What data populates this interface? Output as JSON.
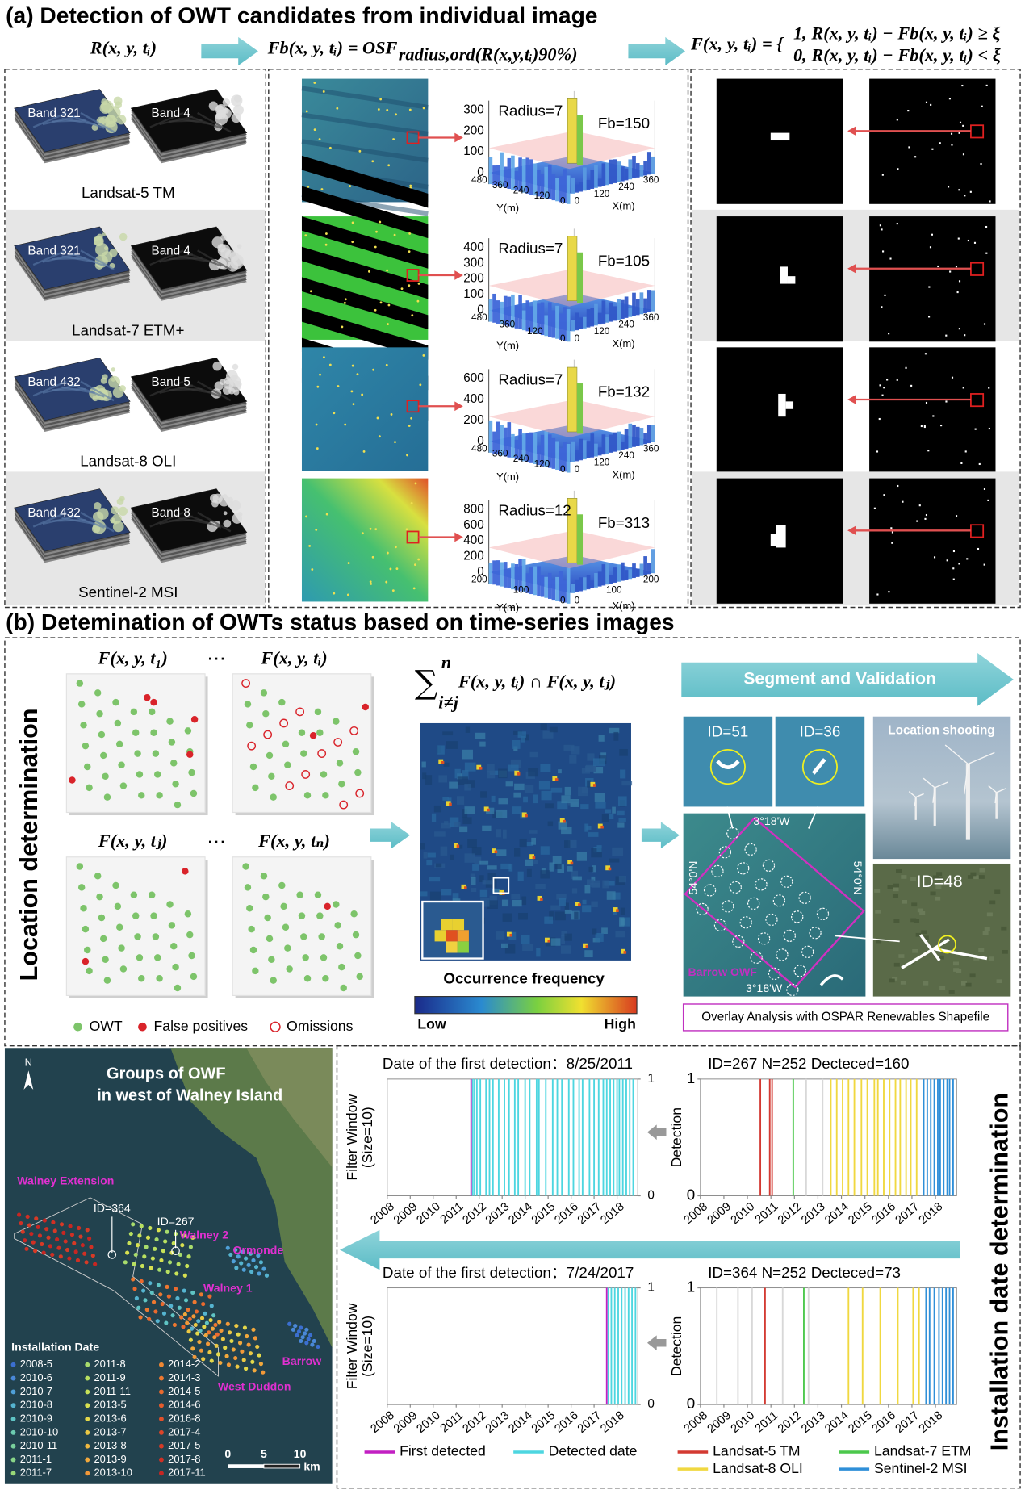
{
  "panel_a": {
    "title": "(a) Detection of  OWT candidates from individual image",
    "eq_input": "R(x, y, tᵢ)",
    "eq_filter": "Fb(x, y, tᵢ) = OSF",
    "eq_filter_sub": "radius,ord(R(x,y,tᵢ)90%)",
    "eq_binary": "F(x, y, tᵢ) = {",
    "eq_case1": "1, R(x, y, tᵢ) − Fb(x, y, tᵢ) ≥ ξ",
    "eq_case0": "0, R(x, y, tᵢ) − Fb(x, y, tᵢ) < ξ",
    "y_axis": "Y(m)",
    "x_axis": "X(m)",
    "rows": [
      {
        "sensor": "Landsat-5 TM",
        "bands": [
          "Band 321",
          "Band 4"
        ],
        "radius": "Radius=7",
        "fb": "Fb=150",
        "zticks": [
          300,
          200,
          100,
          0
        ],
        "yticks": [
          480,
          360,
          240,
          120,
          0
        ],
        "xticks": [
          0,
          120,
          240,
          360
        ]
      },
      {
        "sensor": "Landsat-7 ETM+",
        "bands": [
          "Band 321",
          "Band 4"
        ],
        "radius": "Radius=7",
        "fb": "Fb=105",
        "zticks": [
          400,
          300,
          200,
          100,
          0
        ],
        "yticks": [
          480,
          360,
          120,
          0
        ],
        "xticks": [
          0,
          120,
          240,
          360
        ]
      },
      {
        "sensor": "Landsat-8 OLI",
        "bands": [
          "Band 432",
          "Band 5"
        ],
        "radius": "Radius=7",
        "fb": "Fb=132",
        "zticks": [
          600,
          400,
          200,
          0
        ],
        "yticks": [
          480,
          360,
          240,
          120,
          0
        ],
        "xticks": [
          0,
          120,
          240,
          360
        ]
      },
      {
        "sensor": "Sentinel-2 MSI",
        "bands": [
          "Band 432",
          "Band 8"
        ],
        "radius": "Radius=12",
        "fb": "Fb=313",
        "zticks": [
          800,
          600,
          400,
          200,
          0
        ],
        "yticks": [
          200,
          100,
          0
        ],
        "xticks": [
          0,
          100,
          200
        ]
      }
    ]
  },
  "panel_b": {
    "title": "(b) Detemination of OWTs status based on time-series images",
    "side_label": "Location determination",
    "frames": [
      "F(x, y, t₁)",
      "F(x, y, tᵢ)",
      "F(x, y, tⱼ)",
      "F(x, y, tₙ)"
    ],
    "ellipses": [
      "⋯",
      "⋯"
    ],
    "legend": [
      {
        "name": "OWT",
        "color": "#7dc46a"
      },
      {
        "name": "False positives",
        "color": "#d9232a"
      },
      {
        "name": "Omissions",
        "color": "#d9232a"
      }
    ],
    "sum_symbol": "∑",
    "sum_upper": "n",
    "sum_lower": "i≠j",
    "sum_expr": "F(x, y, tᵢ) ∩ F(x, y, tⱼ)",
    "frequency_label": "Occurrence frequency",
    "low": "Low",
    "high": "High",
    "arrow_label": "Segment and Validation",
    "ids": [
      "ID=51",
      "ID=36"
    ],
    "photo_label": "Location shooting",
    "photo_id": "ID=48",
    "lon": [
      "3°18'W",
      "3°18'W"
    ],
    "lat": [
      "54°0'N",
      "54°0'N"
    ],
    "site": "Barrow OWF",
    "overlay": "Overlay Analysis with OSPAR Renewables Shapefile"
  },
  "panel_c": {
    "side_label": "Installation date  determination",
    "map": {
      "north": "N",
      "title": [
        "Groups of OWF",
        "in west of Walney Island"
      ],
      "farms": [
        "Walney Extension",
        "Walney 2",
        "Ormonde",
        "Walney 1",
        "Barrow",
        "West Duddon"
      ],
      "ids": [
        "ID=364",
        "ID=267"
      ],
      "legend_title": "Installation Date",
      "dates": [
        {
          "name": "2008-5",
          "color": "#3b6fd0"
        },
        {
          "name": "2010-6",
          "color": "#4a88d8"
        },
        {
          "name": "2010-7",
          "color": "#4fa0d8"
        },
        {
          "name": "2010-8",
          "color": "#55b4d0"
        },
        {
          "name": "2010-9",
          "color": "#5fc4c4"
        },
        {
          "name": "2010-10",
          "color": "#6ccbb0"
        },
        {
          "name": "2010-11",
          "color": "#79d09c"
        },
        {
          "name": "2011-1",
          "color": "#88d488"
        },
        {
          "name": "2011-7",
          "color": "#98d878"
        },
        {
          "name": "2011-8",
          "color": "#a8dc6c"
        },
        {
          "name": "2011-9",
          "color": "#b8e060"
        },
        {
          "name": "2011-11",
          "color": "#c8e258"
        },
        {
          "name": "2013-5",
          "color": "#d8e050"
        },
        {
          "name": "2013-6",
          "color": "#e4d84a"
        },
        {
          "name": "2013-7",
          "color": "#ecc844"
        },
        {
          "name": "2013-8",
          "color": "#f0b840"
        },
        {
          "name": "2013-9",
          "color": "#f2a83c"
        },
        {
          "name": "2013-10",
          "color": "#f29838"
        },
        {
          "name": "2014-2",
          "color": "#f08834"
        },
        {
          "name": "2014-3",
          "color": "#ee7830"
        },
        {
          "name": "2014-5",
          "color": "#ea6a2e"
        },
        {
          "name": "2014-6",
          "color": "#e65c2c"
        },
        {
          "name": "2016-8",
          "color": "#e2502a"
        },
        {
          "name": "2017-4",
          "color": "#dc4428"
        },
        {
          "name": "2017-5",
          "color": "#d63a26"
        },
        {
          "name": "2017-8",
          "color": "#d03024"
        },
        {
          "name": "2017-11",
          "color": "#c82622"
        }
      ],
      "scale": [
        0,
        5,
        10
      ],
      "scale_unit": "km"
    },
    "charts": [
      {
        "type": "event",
        "title": "Date of the first detection：8/25/2011",
        "ylabel": [
          "Filter Window",
          "(Size=10)"
        ],
        "ylim": [
          0,
          1
        ],
        "yticks": [
          0,
          1
        ],
        "xlim": [
          2008,
          2018.9
        ],
        "xticks": [
          2008,
          2009,
          2010,
          2011,
          2012,
          2013,
          2014,
          2015,
          2016,
          2017,
          2018
        ],
        "groups": [
          {
            "color": "#c21fc2",
            "x": [
              2011.65
            ]
          },
          {
            "color": "#4dd6e0",
            "x": [
              2011.72,
              2011.8,
              2011.9,
              2012.05,
              2012.3,
              2012.45,
              2012.6,
              2012.85,
              2013.1,
              2013.3,
              2013.55,
              2013.7,
              2014.0,
              2014.2,
              2014.5,
              2014.6,
              2014.9,
              2015.2,
              2015.4,
              2015.6,
              2015.9,
              2016.1,
              2016.35,
              2016.5,
              2016.8,
              2017.0,
              2017.2,
              2017.4,
              2017.55,
              2017.7,
              2017.85,
              2018.0,
              2018.1,
              2018.25,
              2018.4,
              2018.55,
              2018.7
            ]
          }
        ]
      },
      {
        "type": "event",
        "title": "ID=267  N=252  Decteced=160",
        "ylabel": [
          "Detection"
        ],
        "ylim": [
          0,
          1
        ],
        "yticks": [
          0,
          1
        ],
        "xlim": [
          2008,
          2018.9
        ],
        "xticks": [
          2008,
          2009,
          2010,
          2011,
          2012,
          2013,
          2014,
          2015,
          2016,
          2017,
          2018
        ],
        "groups": [
          {
            "color": "#d8d8d8",
            "x": [
              2012.5,
              2013.2
            ]
          },
          {
            "color": "#d33a32",
            "x": [
              2010.55,
              2010.95,
              2011.05
            ]
          },
          {
            "color": "#4cc84c",
            "x": [
              2011.95
            ]
          },
          {
            "color": "#f0d840",
            "x": [
              2013.55,
              2013.8,
              2014.05,
              2014.3,
              2014.55,
              2014.85,
              2015.1,
              2015.4,
              2015.55,
              2015.8,
              2016.05,
              2016.3,
              2016.5,
              2016.75,
              2016.95,
              2017.2
            ]
          },
          {
            "color": "#2f8fd8",
            "x": [
              2017.5,
              2017.65,
              2017.8,
              2017.95,
              2018.1,
              2018.2,
              2018.35,
              2018.5,
              2018.6,
              2018.75
            ]
          }
        ]
      },
      {
        "type": "event",
        "title": "Date of the first detection：7/24/2017",
        "ylabel": [
          "Filter Window",
          "(Size=10)"
        ],
        "ylim": [
          0,
          1
        ],
        "yticks": [
          0,
          1
        ],
        "xlim": [
          2008,
          2018.9
        ],
        "xticks": [
          2008,
          2009,
          2010,
          2011,
          2012,
          2013,
          2014,
          2015,
          2016,
          2017,
          2018
        ],
        "groups": [
          {
            "color": "#c21fc2",
            "x": [
              2017.55
            ]
          },
          {
            "color": "#4dd6e0",
            "x": [
              2017.62,
              2017.75,
              2017.9,
              2018.05,
              2018.2,
              2018.35,
              2018.5,
              2018.65,
              2018.8
            ]
          }
        ]
      },
      {
        "type": "event",
        "title": "ID=364  N=252  Decteced=73",
        "ylabel": [
          "Detection"
        ],
        "ylim": [
          0,
          1
        ],
        "yticks": [
          0,
          1
        ],
        "xlim": [
          2008,
          2018.9
        ],
        "xticks": [
          2008,
          2009,
          2010,
          2011,
          2012,
          2013,
          2014,
          2015,
          2016,
          2017,
          2018
        ],
        "groups": [
          {
            "color": "#d8d8d8",
            "x": [
              2008.7,
              2009.6,
              2010.2,
              2011.5,
              2012.6
            ]
          },
          {
            "color": "#d33a32",
            "x": [
              2010.75
            ]
          },
          {
            "color": "#4cc84c",
            "x": [
              2012.4
            ]
          },
          {
            "color": "#f0d840",
            "x": [
              2014.3,
              2014.9,
              2015.65,
              2016.4,
              2017.05,
              2017.3
            ]
          },
          {
            "color": "#2f8fd8",
            "x": [
              2017.6,
              2017.75,
              2017.95,
              2018.15,
              2018.3,
              2018.45,
              2018.6,
              2018.75
            ]
          }
        ]
      }
    ],
    "legend": [
      {
        "name": "First detected",
        "color": "#c21fc2"
      },
      {
        "name": "Detected date",
        "color": "#4dd6e0"
      },
      {
        "name": "Landsat-5 TM",
        "color": "#d33a32"
      },
      {
        "name": "Landsat-7 ETM",
        "color": "#4cc84c"
      },
      {
        "name": "Landsat-8 OLI",
        "color": "#f0d840"
      },
      {
        "name": "Sentinel-2 MSI",
        "color": "#2f8fd8"
      }
    ]
  }
}
